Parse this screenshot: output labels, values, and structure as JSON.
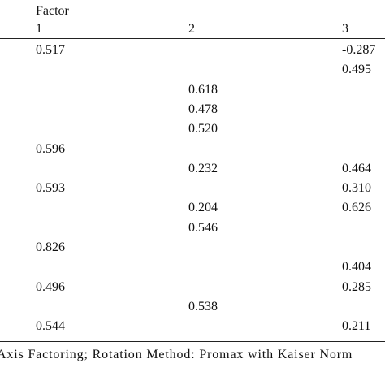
{
  "header": {
    "group_label": "Factor",
    "columns": [
      "1",
      "2",
      "3"
    ]
  },
  "rows": [
    [
      "0.517",
      "",
      "-0.287"
    ],
    [
      "",
      "",
      "0.495"
    ],
    [
      "",
      "0.618",
      ""
    ],
    [
      "",
      "0.478",
      ""
    ],
    [
      "",
      "0.520",
      ""
    ],
    [
      "0.596",
      "",
      ""
    ],
    [
      "",
      "0.232",
      "0.464"
    ],
    [
      "0.593",
      "",
      "0.310"
    ],
    [
      "",
      "0.204",
      "0.626"
    ],
    [
      "",
      "0.546",
      ""
    ],
    [
      "0.826",
      "",
      ""
    ],
    [
      "",
      "",
      "0.404"
    ],
    [
      "0.496",
      "",
      "0.285"
    ],
    [
      "",
      "0.538",
      ""
    ],
    [
      "0.544",
      "",
      "0.211"
    ]
  ],
  "footer": "Axis Factoring; Rotation Method: Promax with Kaiser Norm"
}
